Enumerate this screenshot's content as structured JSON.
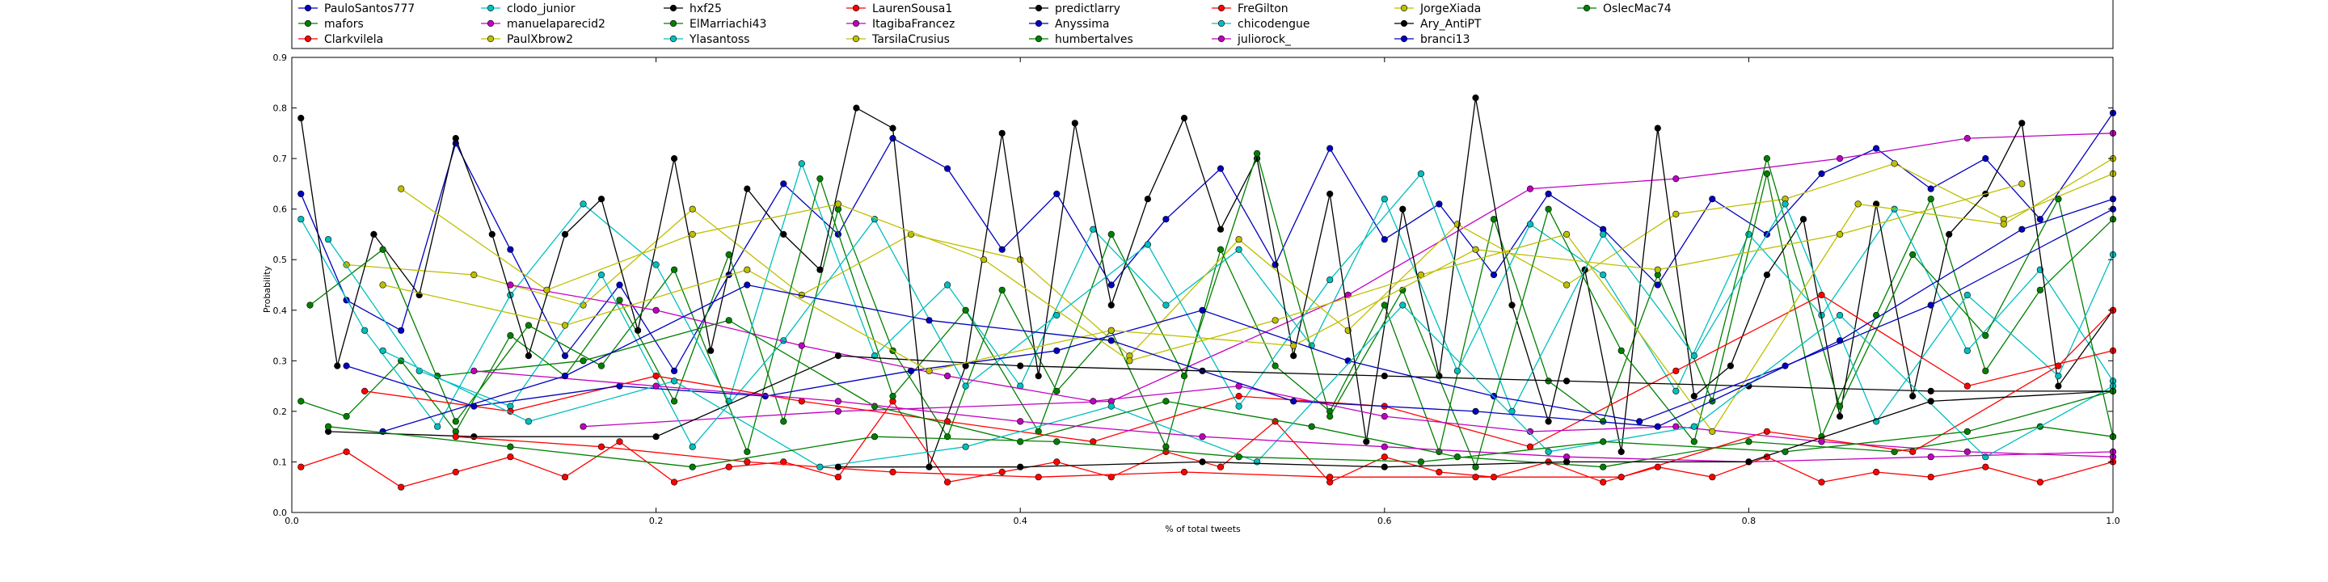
{
  "chart_data": {
    "type": "line",
    "title": "",
    "xlabel": "% of total tweets",
    "ylabel": "Probability",
    "xlim": [
      0.0,
      1.0
    ],
    "ylim": [
      0.0,
      0.9
    ],
    "xticks": [
      "0.0",
      "0.2",
      "0.4",
      "0.6",
      "0.8",
      "1.0"
    ],
    "yticks": [
      "0.0",
      "0.1",
      "0.2",
      "0.3",
      "0.4",
      "0.5",
      "0.6",
      "0.7",
      "0.8",
      "0.9"
    ],
    "grid": false,
    "legend_position": "top, above plot",
    "series": [
      {
        "name": "PauloSantos777",
        "color": "#0000bf",
        "x": [
          0.005,
          0.03,
          0.06,
          0.09,
          0.12,
          0.15,
          0.18,
          0.21,
          0.24,
          0.27,
          0.3,
          0.33,
          0.36,
          0.39,
          0.42,
          0.45,
          0.48,
          0.51,
          0.54,
          0.57,
          0.6,
          0.63,
          0.66,
          0.69,
          0.72,
          0.75,
          0.78,
          0.81,
          0.84,
          0.87,
          0.9,
          0.93,
          0.96,
          1.0
        ],
        "y": [
          0.63,
          0.42,
          0.36,
          0.73,
          0.52,
          0.31,
          0.45,
          0.28,
          0.47,
          0.65,
          0.55,
          0.74,
          0.68,
          0.52,
          0.63,
          0.45,
          0.58,
          0.68,
          0.49,
          0.72,
          0.54,
          0.61,
          0.47,
          0.63,
          0.56,
          0.45,
          0.62,
          0.55,
          0.67,
          0.72,
          0.64,
          0.7,
          0.58,
          0.79
        ]
      },
      {
        "name": "mafors",
        "color": "#007f00",
        "x": [
          0.005,
          0.03,
          0.06,
          0.09,
          0.12,
          0.15,
          0.18,
          0.21,
          0.24,
          0.27,
          0.3,
          0.33,
          0.36,
          0.39,
          0.42,
          0.45,
          0.48,
          0.51,
          0.54,
          0.57,
          0.6,
          0.63,
          0.66,
          0.69,
          0.72,
          0.75,
          0.78,
          0.81,
          0.84,
          0.87,
          0.9,
          0.93,
          0.96,
          1.0
        ],
        "y": [
          0.22,
          0.19,
          0.3,
          0.16,
          0.35,
          0.27,
          0.42,
          0.22,
          0.51,
          0.18,
          0.6,
          0.32,
          0.15,
          0.44,
          0.24,
          0.36,
          0.13,
          0.52,
          0.29,
          0.2,
          0.41,
          0.12,
          0.58,
          0.26,
          0.18,
          0.47,
          0.22,
          0.67,
          0.15,
          0.39,
          0.62,
          0.28,
          0.44,
          0.58
        ]
      },
      {
        "name": "Clarkvilela",
        "color": "#ff0000",
        "x": [
          0.005,
          0.03,
          0.06,
          0.09,
          0.12,
          0.15,
          0.18,
          0.21,
          0.24,
          0.27,
          0.3,
          0.33,
          0.36,
          0.39,
          0.42,
          0.45,
          0.48,
          0.51,
          0.54,
          0.57,
          0.6,
          0.63,
          0.66,
          0.69,
          0.72,
          0.75,
          0.78,
          0.81,
          0.84,
          0.87,
          0.9,
          0.93,
          0.96,
          1.0
        ],
        "y": [
          0.09,
          0.12,
          0.05,
          0.08,
          0.11,
          0.07,
          0.14,
          0.06,
          0.09,
          0.1,
          0.07,
          0.22,
          0.06,
          0.08,
          0.1,
          0.07,
          0.12,
          0.09,
          0.18,
          0.06,
          0.11,
          0.08,
          0.07,
          0.1,
          0.06,
          0.09,
          0.07,
          0.11,
          0.06,
          0.08,
          0.07,
          0.09,
          0.06,
          0.1
        ]
      },
      {
        "name": "clodo_junior",
        "color": "#00bfbf",
        "x": [
          0.005,
          0.04,
          0.08,
          0.12,
          0.16,
          0.2,
          0.24,
          0.28,
          0.32,
          0.36,
          0.4,
          0.44,
          0.48,
          0.52,
          0.56,
          0.6,
          0.64,
          0.68,
          0.72,
          0.76,
          0.8,
          0.84,
          0.88,
          0.92,
          0.96,
          1.0
        ],
        "y": [
          0.58,
          0.36,
          0.17,
          0.43,
          0.61,
          0.49,
          0.22,
          0.69,
          0.31,
          0.45,
          0.25,
          0.56,
          0.41,
          0.52,
          0.33,
          0.62,
          0.28,
          0.57,
          0.47,
          0.24,
          0.55,
          0.39,
          0.6,
          0.32,
          0.48,
          0.26
        ]
      },
      {
        "name": "manuelaparecid2",
        "color": "#bf00bf",
        "x": [
          0.16,
          0.3,
          0.45,
          0.58,
          0.68,
          0.76,
          0.85,
          0.92,
          1.0
        ],
        "y": [
          0.17,
          0.2,
          0.22,
          0.43,
          0.64,
          0.66,
          0.7,
          0.74,
          0.75
        ]
      },
      {
        "name": "PaulXbrow2",
        "color": "#bfbf00",
        "x": [
          0.03,
          0.1,
          0.16,
          0.22,
          0.28,
          0.34,
          0.4,
          0.46,
          0.52,
          0.58,
          0.64,
          0.7,
          0.76,
          0.82,
          0.88,
          0.94,
          1.0
        ],
        "y": [
          0.49,
          0.47,
          0.41,
          0.6,
          0.43,
          0.55,
          0.5,
          0.31,
          0.54,
          0.36,
          0.57,
          0.45,
          0.59,
          0.62,
          0.69,
          0.58,
          0.67
        ]
      },
      {
        "name": "hxf25",
        "color": "#000000",
        "x": [
          0.005,
          0.025,
          0.045,
          0.07,
          0.09,
          0.11,
          0.13,
          0.15,
          0.17,
          0.19,
          0.21,
          0.23,
          0.25,
          0.27,
          0.29,
          0.31,
          0.33,
          0.35,
          0.37,
          0.39,
          0.41,
          0.43,
          0.45,
          0.47,
          0.49,
          0.51,
          0.53,
          0.55,
          0.57,
          0.59,
          0.61,
          0.63,
          0.65,
          0.67,
          0.69,
          0.71,
          0.73,
          0.75,
          0.77,
          0.79,
          0.81,
          0.83,
          0.85,
          0.87,
          0.89,
          0.91,
          0.93,
          0.95,
          0.97,
          1.0
        ],
        "y": [
          0.78,
          0.29,
          0.55,
          0.43,
          0.74,
          0.55,
          0.31,
          0.55,
          0.62,
          0.36,
          0.7,
          0.32,
          0.64,
          0.55,
          0.48,
          0.8,
          0.76,
          0.09,
          0.29,
          0.75,
          0.27,
          0.77,
          0.41,
          0.62,
          0.78,
          0.56,
          0.7,
          0.31,
          0.63,
          0.14,
          0.6,
          0.27,
          0.82,
          0.41,
          0.18,
          0.48,
          0.12,
          0.76,
          0.23,
          0.29,
          0.47,
          0.58,
          0.19,
          0.61,
          0.23,
          0.55,
          0.63,
          0.77,
          0.25,
          0.4
        ]
      },
      {
        "name": "ElMarriachi43",
        "color": "#007f00",
        "x": [
          0.01,
          0.05,
          0.09,
          0.13,
          0.17,
          0.21,
          0.25,
          0.29,
          0.33,
          0.37,
          0.41,
          0.45,
          0.49,
          0.53,
          0.57,
          0.61,
          0.65,
          0.69,
          0.73,
          0.77,
          0.81,
          0.85,
          0.89,
          0.93,
          0.97,
          1.0
        ],
        "y": [
          0.41,
          0.52,
          0.18,
          0.37,
          0.29,
          0.48,
          0.12,
          0.66,
          0.23,
          0.4,
          0.16,
          0.55,
          0.27,
          0.71,
          0.19,
          0.44,
          0.09,
          0.6,
          0.32,
          0.14,
          0.7,
          0.21,
          0.51,
          0.35,
          0.62,
          0.15
        ]
      },
      {
        "name": "Ylasantoss",
        "color": "#00bfbf",
        "x": [
          0.02,
          0.07,
          0.12,
          0.17,
          0.22,
          0.27,
          0.32,
          0.37,
          0.42,
          0.47,
          0.52,
          0.57,
          0.62,
          0.67,
          0.72,
          0.77,
          0.82,
          0.87,
          0.92,
          0.97,
          1.0
        ],
        "y": [
          0.54,
          0.28,
          0.21,
          0.47,
          0.13,
          0.34,
          0.58,
          0.25,
          0.39,
          0.53,
          0.21,
          0.46,
          0.67,
          0.2,
          0.55,
          0.31,
          0.61,
          0.18,
          0.43,
          0.27,
          0.51
        ]
      },
      {
        "name": "LaurenSousa1",
        "color": "#ff0000",
        "x": [
          0.04,
          0.12,
          0.2,
          0.28,
          0.36,
          0.44,
          0.52,
          0.6,
          0.68,
          0.76,
          0.84,
          0.92,
          1.0
        ],
        "y": [
          0.24,
          0.2,
          0.27,
          0.22,
          0.18,
          0.14,
          0.23,
          0.21,
          0.13,
          0.28,
          0.43,
          0.25,
          0.32
        ]
      },
      {
        "name": "ItagibaFrancez",
        "color": "#bf00bf",
        "x": [
          0.12,
          0.2,
          0.28,
          0.36,
          0.44,
          0.52,
          0.6,
          0.68,
          0.76,
          0.84,
          0.92,
          1.0
        ],
        "y": [
          0.45,
          0.4,
          0.33,
          0.27,
          0.22,
          0.25,
          0.19,
          0.16,
          0.17,
          0.14,
          0.12,
          0.11
        ]
      },
      {
        "name": "TarsilaCrusius",
        "color": "#bfbf00",
        "x": [
          0.06,
          0.14,
          0.22,
          0.3,
          0.38,
          0.46,
          0.54,
          0.62,
          0.7,
          0.78,
          0.86,
          0.94,
          1.0
        ],
        "y": [
          0.64,
          0.44,
          0.55,
          0.61,
          0.5,
          0.3,
          0.38,
          0.47,
          0.55,
          0.16,
          0.61,
          0.57,
          0.7
        ]
      },
      {
        "name": "predictlarry",
        "color": "#000000",
        "x": [
          0.02,
          0.1,
          0.2,
          0.3,
          0.4,
          0.5,
          0.6,
          0.7,
          0.8,
          0.9,
          1.0
        ],
        "y": [
          0.16,
          0.15,
          0.15,
          0.31,
          0.29,
          0.28,
          0.27,
          0.26,
          0.25,
          0.24,
          0.24
        ]
      },
      {
        "name": "Anyssima",
        "color": "#0000bf",
        "x": [
          0.03,
          0.1,
          0.18,
          0.26,
          0.34,
          0.42,
          0.5,
          0.58,
          0.66,
          0.74,
          0.82,
          0.9,
          1.0
        ],
        "y": [
          0.29,
          0.21,
          0.25,
          0.23,
          0.28,
          0.32,
          0.4,
          0.3,
          0.23,
          0.18,
          0.29,
          0.41,
          0.6
        ]
      },
      {
        "name": "humbertalves",
        "color": "#007f00",
        "x": [
          0.08,
          0.16,
          0.24,
          0.32,
          0.4,
          0.48,
          0.56,
          0.64,
          0.72,
          0.8,
          0.88,
          0.96,
          1.0
        ],
        "y": [
          0.27,
          0.3,
          0.38,
          0.21,
          0.14,
          0.22,
          0.17,
          0.11,
          0.09,
          0.14,
          0.12,
          0.17,
          0.15
        ]
      },
      {
        "name": "FreGilton",
        "color": "#ff0000",
        "x": [
          0.09,
          0.17,
          0.25,
          0.33,
          0.41,
          0.49,
          0.57,
          0.65,
          0.73,
          0.81,
          0.89,
          0.97,
          1.0
        ],
        "y": [
          0.15,
          0.13,
          0.1,
          0.08,
          0.07,
          0.08,
          0.07,
          0.07,
          0.07,
          0.16,
          0.12,
          0.29,
          0.4
        ]
      },
      {
        "name": "chicodengue",
        "color": "#00bfbf",
        "x": [
          0.05,
          0.13,
          0.21,
          0.29,
          0.37,
          0.45,
          0.53,
          0.61,
          0.69,
          0.77,
          0.85,
          0.93,
          1.0
        ],
        "y": [
          0.32,
          0.18,
          0.26,
          0.09,
          0.13,
          0.21,
          0.1,
          0.41,
          0.12,
          0.17,
          0.39,
          0.11,
          0.25
        ]
      },
      {
        "name": "juliorock_",
        "color": "#bf00bf",
        "x": [
          0.1,
          0.2,
          0.3,
          0.4,
          0.5,
          0.6,
          0.7,
          0.8,
          0.9,
          1.0
        ],
        "y": [
          0.28,
          0.25,
          0.22,
          0.18,
          0.15,
          0.13,
          0.11,
          0.1,
          0.11,
          0.12
        ]
      },
      {
        "name": "JorgeXiada",
        "color": "#bfbf00",
        "x": [
          0.05,
          0.15,
          0.25,
          0.35,
          0.45,
          0.55,
          0.65,
          0.75,
          0.85,
          0.95
        ],
        "y": [
          0.45,
          0.37,
          0.48,
          0.28,
          0.36,
          0.33,
          0.52,
          0.48,
          0.55,
          0.65
        ]
      },
      {
        "name": "Ary_AntiPT",
        "color": "#000000",
        "x": [
          0.3,
          0.4,
          0.5,
          0.6,
          0.7,
          0.8,
          0.9,
          1.0
        ],
        "y": [
          0.09,
          0.09,
          0.1,
          0.09,
          0.1,
          0.1,
          0.22,
          0.24
        ]
      },
      {
        "name": "branci13",
        "color": "#0000bf",
        "x": [
          0.05,
          0.15,
          0.25,
          0.35,
          0.45,
          0.55,
          0.65,
          0.75,
          0.85,
          0.95,
          1.0
        ],
        "y": [
          0.16,
          0.27,
          0.45,
          0.38,
          0.34,
          0.22,
          0.2,
          0.17,
          0.34,
          0.56,
          0.62
        ]
      },
      {
        "name": "OslecMac74",
        "color": "#007f00",
        "x": [
          0.02,
          0.12,
          0.22,
          0.32,
          0.42,
          0.52,
          0.62,
          0.72,
          0.82,
          0.92,
          1.0
        ],
        "y": [
          0.17,
          0.13,
          0.09,
          0.15,
          0.14,
          0.11,
          0.1,
          0.14,
          0.12,
          0.16,
          0.24
        ]
      }
    ]
  }
}
